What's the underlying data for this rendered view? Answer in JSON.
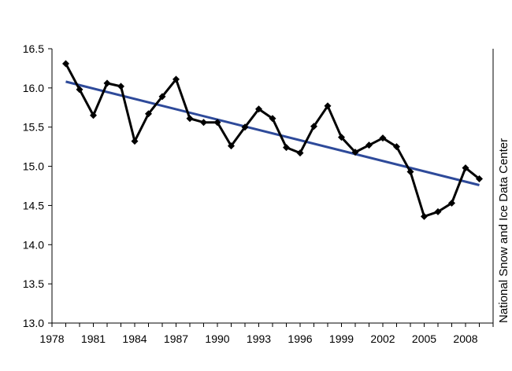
{
  "chart_data": {
    "type": "line",
    "x": [
      1979,
      1980,
      1981,
      1982,
      1983,
      1984,
      1985,
      1986,
      1987,
      1988,
      1989,
      1990,
      1991,
      1992,
      1993,
      1994,
      1995,
      1996,
      1997,
      1998,
      1999,
      2000,
      2001,
      2002,
      2003,
      2004,
      2005,
      2006,
      2007,
      2008,
      2009
    ],
    "series": [
      {
        "values": [
          16.31,
          15.98,
          15.65,
          16.06,
          16.02,
          15.32,
          15.67,
          15.89,
          16.11,
          15.61,
          15.56,
          15.56,
          15.26,
          15.5,
          15.73,
          15.61,
          15.24,
          15.17,
          15.51,
          15.77,
          15.37,
          15.18,
          15.27,
          15.36,
          15.25,
          14.93,
          14.36,
          14.42,
          14.53,
          14.98,
          14.84
        ],
        "color": "#000000",
        "marker": "diamond"
      }
    ],
    "trendline": {
      "x": [
        1979,
        2009
      ],
      "y": [
        16.08,
        14.76
      ],
      "color": "#2e4a9a"
    },
    "xlim": [
      1978,
      2010
    ],
    "ylim": [
      13.0,
      16.5
    ],
    "x_ticks": [
      "1978",
      "1981",
      "1984",
      "1987",
      "1990",
      "1993",
      "1996",
      "1999",
      "2002",
      "2005",
      "2008"
    ],
    "y_ticks": [
      "13.0",
      "13.5",
      "14.0",
      "14.5",
      "15.0",
      "15.5",
      "16.0",
      "16.5"
    ],
    "grid": false,
    "legend": "none",
    "credit": "National Snow and Ice Data Center"
  }
}
